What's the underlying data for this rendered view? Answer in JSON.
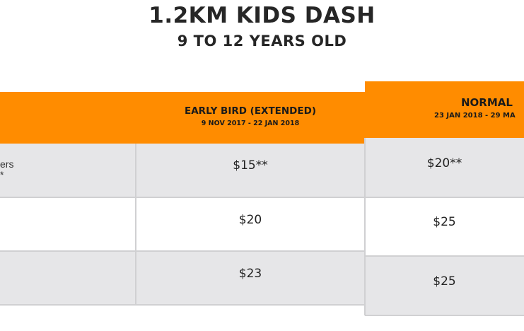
{
  "title": "1.2KM KIDS DASH",
  "subtitle": "9 TO 12 YEARS OLD",
  "columns": {
    "early_bird": {
      "label": "EARLY BIRD (EXTENDED)",
      "dates": "9 NOV 2017 - 22 JAN 2018"
    },
    "normal": {
      "label": "NORMAL",
      "dates": "23 JAN 2018 - 29 MA"
    }
  },
  "rows": [
    {
      "label_line1": "ers",
      "label_line2": "*",
      "early_bird": "$15**",
      "normal": "$20**"
    },
    {
      "label_line1": "",
      "label_line2": "",
      "early_bird": "$20",
      "normal": "$25"
    },
    {
      "label_line1": "",
      "label_line2": "",
      "early_bird": "$23",
      "normal": "$25"
    }
  ],
  "colors": {
    "header": "#ff8c00",
    "row_gray": "#e6e6e8",
    "border": "#d0d0d2"
  }
}
